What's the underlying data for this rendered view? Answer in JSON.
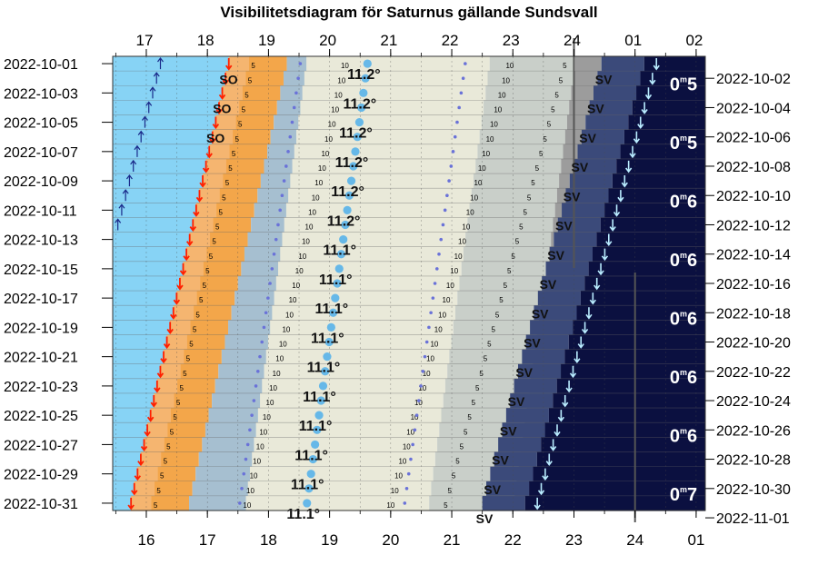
{
  "chart_data": {
    "type": "heatmap",
    "title": "Visibilitetsdiagram för Saturnus gällande Sundsvall",
    "top_axis_ticks": [
      "17",
      "18",
      "19",
      "20",
      "21",
      "22",
      "23",
      "24",
      "01",
      "02"
    ],
    "bottom_axis_ticks": [
      "16",
      "17",
      "18",
      "19",
      "20",
      "21",
      "22",
      "23",
      "24",
      "01"
    ],
    "left_dates": [
      "2022-10-01",
      "2022-10-03",
      "2022-10-05",
      "2022-10-07",
      "2022-10-09",
      "2022-10-11",
      "2022-10-13",
      "2022-10-15",
      "2022-10-17",
      "2022-10-19",
      "2022-10-21",
      "2022-10-23",
      "2022-10-25",
      "2022-10-27",
      "2022-10-29",
      "2022-10-31"
    ],
    "right_dates": [
      "2022-10-02",
      "2022-10-04",
      "2022-10-06",
      "2022-10-08",
      "2022-10-10",
      "2022-10-12",
      "2022-10-14",
      "2022-10-16",
      "2022-10-18",
      "2022-10-20",
      "2022-10-22",
      "2022-10-24",
      "2022-10-26",
      "2022-10-28",
      "2022-10-30",
      "2022-11-01"
    ],
    "top_time_range": [
      16.45,
      26.15
    ],
    "bottom_time_range": [
      15.45,
      25.15
    ],
    "rows": 31,
    "sunset_hour_start": 18.35,
    "sunset_hour_end": 15.75,
    "twilight_bands": [
      {
        "name": "civil",
        "end_offset_h": 0.95,
        "color": "#f3a64a"
      },
      {
        "name": "nautical",
        "end_offset_h": 1.95,
        "color": "#a6bfd0"
      },
      {
        "name": "astronomical",
        "end_offset_h": 2.9,
        "color": "#c6ccd2"
      }
    ],
    "planet_transit_start": 20.62,
    "planet_transit_end": 18.63,
    "planet_set_start": 25.35,
    "planet_set_end": 22.4,
    "altitude_labels": [
      "11.2°",
      "11.2°",
      "11.2°",
      "11.2°",
      "11.2°",
      "11.2°",
      "11.1°",
      "11.1°",
      "11.1°",
      "11.1°",
      "11.1°",
      "11.1°",
      "11.1°",
      "11.1°",
      "11.1°",
      "11.1°"
    ],
    "azimuth_labels": [
      {
        "row": 1,
        "text": "SO"
      },
      {
        "row": 3,
        "text": "SO"
      },
      {
        "row": 5,
        "text": "SO"
      },
      {
        "row": 1,
        "text": "SV"
      },
      {
        "row": 3,
        "text": "SV"
      },
      {
        "row": 5,
        "text": "SV"
      },
      {
        "row": 7,
        "text": "SV"
      },
      {
        "row": 9,
        "text": "SV"
      },
      {
        "row": 11,
        "text": "SV"
      },
      {
        "row": 13,
        "text": "SV"
      },
      {
        "row": 15,
        "text": "SV"
      },
      {
        "row": 17,
        "text": "SV"
      },
      {
        "row": 19,
        "text": "SV"
      },
      {
        "row": 21,
        "text": "SV"
      },
      {
        "row": 23,
        "text": "SV"
      },
      {
        "row": 25,
        "text": "SV"
      },
      {
        "row": 27,
        "text": "SV"
      },
      {
        "row": 29,
        "text": "SV"
      },
      {
        "row": 31,
        "text": "SV"
      }
    ],
    "magnitude_labels": [
      "0m5",
      "0m5",
      "0m6",
      "0m6",
      "0m6",
      "0m6",
      "0m6",
      "0m7"
    ],
    "altitude_ticks": [
      "5",
      "10"
    ],
    "colors": {
      "day": "#87d3f5",
      "civil": "#f3a64a",
      "nautical": "#a6bfd0",
      "astronomical": "#c6ccd2",
      "visible_high": "#e9e9d9",
      "visible_mid": "#c9cfc9",
      "low": "#9c9c9c",
      "night": "#0b1040",
      "night_mid": "#3b4a7a",
      "sunset_arrow": "#ff2000",
      "planet_arrow": "#b9ecff",
      "dot": "#6a72d8",
      "planet_disk": "#66b8e8"
    }
  }
}
